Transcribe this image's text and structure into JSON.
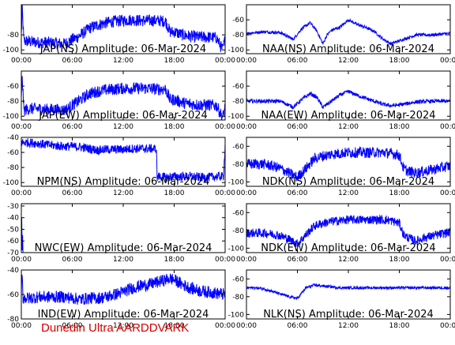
{
  "footer": {
    "text": "Dunedin Ultra AARDDVARK",
    "color": "#d40000"
  },
  "chart_data": [
    {
      "type": "line",
      "position": "row 1, left",
      "title": "JAP(NS) Amplitude: 06-Mar-2024",
      "ylim": [
        -105,
        -40
      ],
      "yticks": [
        -100,
        -80
      ],
      "xlim": [
        0,
        24
      ],
      "xticks": [
        "00:00",
        "06:00",
        "12:00",
        "18:00",
        "00:00"
      ],
      "series": [
        {
          "color": "#0000ff",
          "x": [
            0,
            0.1,
            0.3,
            1,
            2,
            3,
            4,
            5,
            5.5,
            6,
            6.5,
            7,
            7.5,
            8,
            9,
            10,
            11,
            12,
            13,
            14,
            15,
            16,
            17,
            17.5,
            18,
            19,
            20,
            21,
            22,
            23,
            23.7,
            24
          ],
          "y": [
            -80,
            -45,
            -88,
            -89,
            -90,
            -90,
            -91,
            -92,
            -90,
            -86,
            -84,
            -80,
            -76,
            -71,
            -67,
            -64,
            -62,
            -61,
            -60,
            -61,
            -61,
            -61,
            -62,
            -76,
            -76,
            -80,
            -82,
            -83,
            -83,
            -84,
            -100,
            -85
          ],
          "noise": 8
        }
      ]
    },
    {
      "type": "line",
      "position": "row 1, right",
      "title": "NAA(NS) Amplitude: 06-Mar-2024",
      "ylim": [
        -105,
        -40
      ],
      "yticks": [
        -100,
        -80,
        -60
      ],
      "xlim": [
        0,
        24
      ],
      "xticks": [
        "00:00",
        "06:00",
        "12:00",
        "18:00",
        "00:00"
      ],
      "series": [
        {
          "color": "#0000ff",
          "x": [
            0,
            2,
            4,
            5.5,
            6.5,
            7.5,
            8.3,
            9,
            9.5,
            10,
            11,
            12,
            13,
            14,
            15,
            16,
            17,
            18,
            19,
            20,
            22,
            24
          ],
          "y": [
            -78,
            -76,
            -77,
            -86,
            -72,
            -64,
            -75,
            -92,
            -80,
            -74,
            -70,
            -60,
            -66,
            -70,
            -75,
            -85,
            -92,
            -88,
            -84,
            -80,
            -80,
            -78
          ],
          "noise": 2
        }
      ]
    },
    {
      "type": "line",
      "position": "row 2, left",
      "title": "JAP(EW) Amplitude: 06-Mar-2024",
      "ylim": [
        -105,
        -40
      ],
      "yticks": [
        -100,
        -80,
        -60
      ],
      "xlim": [
        0,
        24
      ],
      "xticks": [
        "00:00",
        "06:00",
        "12:00",
        "18:00",
        "00:00"
      ],
      "series": [
        {
          "color": "#0000ff",
          "x": [
            0,
            0.1,
            0.3,
            1,
            2,
            3,
            4,
            5,
            5.5,
            6,
            6.5,
            7,
            7.5,
            8,
            9,
            10,
            11,
            12,
            13,
            14,
            15,
            16,
            17,
            17.5,
            18,
            19,
            20,
            21,
            22,
            23,
            23.7,
            24
          ],
          "y": [
            -80,
            -45,
            -92,
            -90,
            -90,
            -91,
            -91,
            -92,
            -90,
            -85,
            -82,
            -78,
            -74,
            -70,
            -67,
            -65,
            -64,
            -63,
            -63,
            -63,
            -63,
            -64,
            -64,
            -78,
            -78,
            -82,
            -84,
            -85,
            -85,
            -86,
            -102,
            -88
          ],
          "noise": 8
        }
      ]
    },
    {
      "type": "line",
      "position": "row 2, right",
      "title": "NAA(EW) Amplitude: 06-Mar-2024",
      "ylim": [
        -105,
        -40
      ],
      "yticks": [
        -100,
        -80,
        -60
      ],
      "xlim": [
        0,
        24
      ],
      "xticks": [
        "00:00",
        "06:00",
        "12:00",
        "18:00",
        "00:00"
      ],
      "series": [
        {
          "color": "#0000ff",
          "x": [
            0,
            2,
            4,
            5.5,
            6.5,
            7.5,
            8.3,
            9,
            10,
            11,
            12,
            13,
            14,
            15,
            16,
            17,
            18,
            19,
            20,
            22,
            24
          ],
          "y": [
            -80,
            -80,
            -80,
            -88,
            -78,
            -70,
            -75,
            -88,
            -80,
            -72,
            -67,
            -72,
            -76,
            -80,
            -84,
            -86,
            -85,
            -83,
            -81,
            -80,
            -80
          ],
          "noise": 2.5
        }
      ]
    },
    {
      "type": "line",
      "position": "row 3, left",
      "title": "NPM(NS) Amplitude: 06-Mar-2024",
      "ylim": [
        -105,
        -40
      ],
      "yticks": [
        -100,
        -80,
        -60,
        -40
      ],
      "xlim": [
        0,
        24
      ],
      "xticks": [
        "00:00",
        "06:00",
        "12:00",
        "18:00",
        "00:00"
      ],
      "series": [
        {
          "color": "#0000ff",
          "x": [
            0,
            1,
            2,
            3,
            4,
            5,
            6,
            7,
            8,
            9,
            10,
            11,
            12,
            13,
            14,
            15,
            15.9,
            16,
            16.1,
            17,
            18,
            19,
            20,
            21,
            22,
            23,
            23.8,
            24
          ],
          "y": [
            -47,
            -47,
            -48,
            -50,
            -51,
            -52,
            -52,
            -53,
            -55,
            -57,
            -56,
            -56,
            -56,
            -55,
            -55,
            -55,
            -55,
            -95,
            -92,
            -93,
            -92,
            -92,
            -92,
            -93,
            -93,
            -92,
            -92,
            -50
          ],
          "noise": 6
        }
      ]
    },
    {
      "type": "line",
      "position": "row 3, right",
      "title": "NDK(NS) Amplitude: 06-Mar-2024",
      "ylim": [
        -105,
        -50
      ],
      "yticks": [
        -100,
        -80,
        -60
      ],
      "xlim": [
        0,
        24
      ],
      "xticks": [
        "00:00",
        "06:00",
        "12:00",
        "18:00",
        "00:00"
      ],
      "series": [
        {
          "color": "#0000ff",
          "x": [
            0,
            1,
            2,
            3,
            4,
            5,
            6,
            7,
            8,
            9,
            10,
            11,
            12,
            13,
            14,
            15,
            16,
            17,
            18,
            18.5,
            19,
            20,
            21,
            22,
            23,
            24
          ],
          "y": [
            -80,
            -80,
            -80,
            -82,
            -85,
            -90,
            -95,
            -85,
            -74,
            -71,
            -69,
            -68,
            -67,
            -67,
            -67,
            -67,
            -67,
            -68,
            -70,
            -85,
            -88,
            -90,
            -88,
            -86,
            -84,
            -82
          ],
          "noise": 6
        }
      ]
    },
    {
      "type": "line",
      "position": "row 4, left",
      "title": "NWC(EW) Amplitude: 06-Mar-2024",
      "ylim": [
        -70,
        -28
      ],
      "yticks": [
        -70,
        -60,
        -50,
        -40,
        -30
      ],
      "xlim": [
        0,
        24
      ],
      "xticks": [
        "00:00",
        "06:00",
        "12:00",
        "18:00",
        "00:00"
      ],
      "series": [
        {
          "color": "#0000ff",
          "x": [
            0.05,
            0.1,
            0.15,
            0.2
          ],
          "y": [
            -40,
            -68,
            -55,
            -70
          ],
          "noise": 0
        }
      ]
    },
    {
      "type": "line",
      "position": "row 4, right",
      "title": "NDK(EW) Amplitude: 06-Mar-2024",
      "ylim": [
        -105,
        -50
      ],
      "yticks": [
        -100,
        -80,
        -60
      ],
      "xlim": [
        0,
        24
      ],
      "xticks": [
        "00:00",
        "06:00",
        "12:00",
        "18:00",
        "00:00"
      ],
      "series": [
        {
          "color": "#0000ff",
          "x": [
            0,
            1,
            2,
            3,
            4,
            5,
            6,
            7,
            8,
            9,
            10,
            11,
            12,
            13,
            14,
            15,
            16,
            17,
            18,
            18.5,
            19,
            20,
            21,
            22,
            23,
            24
          ],
          "y": [
            -83,
            -83,
            -83,
            -84,
            -86,
            -90,
            -95,
            -85,
            -75,
            -72,
            -70,
            -69,
            -68,
            -68,
            -68,
            -68,
            -68,
            -69,
            -72,
            -85,
            -88,
            -92,
            -88,
            -86,
            -84,
            -82
          ],
          "noise": 5
        }
      ]
    },
    {
      "type": "line",
      "position": "row 5, left",
      "title": "IND(EW) Amplitude: 06-Mar-2024",
      "ylim": [
        -80,
        -40
      ],
      "yticks": [
        -80,
        -60,
        -40
      ],
      "xlim": [
        0,
        24
      ],
      "xticks": [
        "00:00",
        "06:00",
        "12:00",
        "18:00",
        "00:00"
      ],
      "series": [
        {
          "color": "#0000ff",
          "x": [
            0,
            0.1,
            0.2,
            1,
            2,
            3,
            4,
            5,
            6,
            7,
            8,
            9,
            10,
            11,
            12,
            13,
            14,
            15,
            16,
            17,
            17.5,
            18,
            19,
            20,
            21,
            22,
            23,
            24
          ],
          "y": [
            -60,
            -40,
            -63,
            -63,
            -62,
            -62,
            -62,
            -62,
            -63,
            -64,
            -63,
            -63,
            -62,
            -60,
            -58,
            -55,
            -53,
            -52,
            -50,
            -48,
            -47,
            -48,
            -52,
            -55,
            -57,
            -58,
            -59,
            -60
          ],
          "noise": 5
        }
      ]
    },
    {
      "type": "line",
      "position": "row 5, right",
      "title": "NLK(NS) Amplitude: 06-Mar-2024",
      "ylim": [
        -105,
        -50
      ],
      "yticks": [
        -100,
        -80,
        -60
      ],
      "xlim": [
        0,
        24
      ],
      "xticks": [
        "00:00",
        "06:00",
        "12:00",
        "18:00",
        "00:00"
      ],
      "series": [
        {
          "color": "#0000ff",
          "x": [
            0,
            1,
            2,
            3,
            4,
            5,
            6,
            7,
            8,
            9,
            10,
            11,
            12,
            13,
            14,
            15,
            16,
            17,
            18,
            19,
            20,
            21,
            22,
            23,
            24
          ],
          "y": [
            -70,
            -70,
            -71,
            -74,
            -77,
            -80,
            -82,
            -70,
            -67,
            -68,
            -69,
            -70,
            -70,
            -70,
            -70,
            -70,
            -70,
            -70,
            -70,
            -70,
            -70,
            -70,
            -70,
            -70,
            -70
          ],
          "noise": 1.5
        }
      ]
    }
  ]
}
